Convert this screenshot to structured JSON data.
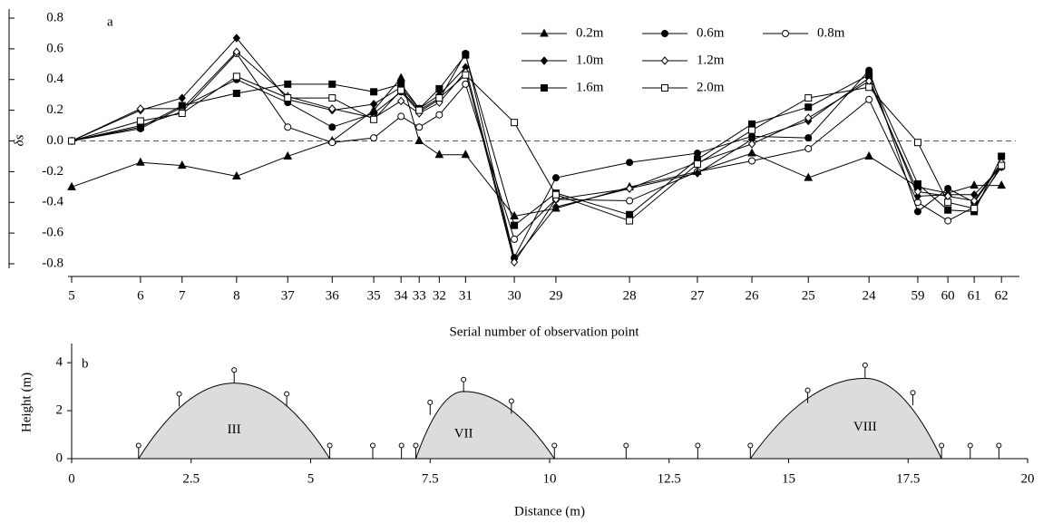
{
  "chart_data": [
    {
      "type": "line",
      "panel_label": "a",
      "xlabel": "Serial number of observation point",
      "ylabel": "δs",
      "x": [
        0,
        1.44,
        2.31,
        3.45,
        4.52,
        5.45,
        6.32,
        6.89,
        7.27,
        7.69,
        8.24,
        9.26,
        10.13,
        11.67,
        13.09,
        14.23,
        15.41,
        16.68,
        17.7,
        18.33,
        18.88,
        19.45
      ],
      "xlim": [
        0,
        19.75
      ],
      "xticks": [
        {
          "value": 0,
          "label": "5"
        },
        {
          "value": 1.44,
          "label": "6"
        },
        {
          "value": 2.31,
          "label": "7"
        },
        {
          "value": 3.45,
          "label": "8"
        },
        {
          "value": 4.52,
          "label": "37"
        },
        {
          "value": 5.45,
          "label": "36"
        },
        {
          "value": 6.32,
          "label": "35"
        },
        {
          "value": 6.89,
          "label": "34"
        },
        {
          "value": 7.27,
          "label": "33"
        },
        {
          "value": 7.69,
          "label": "32"
        },
        {
          "value": 8.24,
          "label": "31"
        },
        {
          "value": 9.26,
          "label": "30"
        },
        {
          "value": 10.13,
          "label": "29"
        },
        {
          "value": 11.67,
          "label": "28"
        },
        {
          "value": 13.09,
          "label": "27"
        },
        {
          "value": 14.23,
          "label": "26"
        },
        {
          "value": 15.41,
          "label": "25"
        },
        {
          "value": 16.68,
          "label": "24"
        },
        {
          "value": 17.7,
          "label": "59"
        },
        {
          "value": 18.33,
          "label": "60"
        },
        {
          "value": 18.88,
          "label": "61"
        },
        {
          "value": 19.45,
          "label": "62"
        }
      ],
      "ylim": [
        -0.8,
        0.8
      ],
      "yticks": [
        -0.8,
        -0.6,
        -0.4,
        -0.2,
        {
          "value": 0,
          "label": "0.0"
        },
        0.2,
        0.4,
        0.6,
        0.8
      ],
      "reference_line": 0,
      "series": [
        {
          "name": "0.2m",
          "color": "#000000",
          "marker": "triangle",
          "values": [
            -0.3,
            -0.14,
            -0.16,
            -0.23,
            -0.1,
            0.0,
            0.2,
            0.41,
            0.0,
            -0.09,
            -0.09,
            -0.49,
            -0.44,
            -0.3,
            -0.2,
            -0.08,
            -0.24,
            -0.1,
            -0.3,
            -0.34,
            -0.29,
            -0.29
          ]
        },
        {
          "name": "0.6m",
          "color": "#000000",
          "marker": "circle",
          "values": [
            0.0,
            0.08,
            0.22,
            0.4,
            0.25,
            0.09,
            0.18,
            0.32,
            0.19,
            0.27,
            0.57,
            -0.76,
            -0.24,
            -0.14,
            -0.08,
            0.03,
            0.02,
            0.46,
            -0.46,
            -0.31,
            -0.4,
            -0.15
          ]
        },
        {
          "name": "0.8m",
          "color": "#000000",
          "marker": "open-circle",
          "values": [
            0.0,
            0.1,
            0.19,
            0.57,
            0.09,
            -0.01,
            0.02,
            0.16,
            0.09,
            0.17,
            0.37,
            -0.64,
            -0.38,
            -0.39,
            -0.2,
            -0.13,
            -0.05,
            0.27,
            -0.4,
            -0.52,
            -0.43,
            -0.17
          ]
        },
        {
          "name": "1.0m",
          "color": "#000000",
          "marker": "diamond",
          "values": [
            0.0,
            0.2,
            0.28,
            0.67,
            0.27,
            0.2,
            0.24,
            0.35,
            0.21,
            0.3,
            0.48,
            -0.77,
            -0.43,
            -0.31,
            -0.21,
            0.01,
            0.13,
            0.41,
            -0.36,
            -0.35,
            -0.35,
            -0.17
          ]
        },
        {
          "name": "1.2m",
          "color": "#000000",
          "marker": "open-diamond",
          "values": [
            0.0,
            0.21,
            0.21,
            0.58,
            0.29,
            0.21,
            0.15,
            0.26,
            0.18,
            0.25,
            0.45,
            -0.79,
            -0.38,
            -0.31,
            -0.14,
            -0.02,
            0.15,
            0.39,
            -0.33,
            -0.36,
            -0.39,
            -0.14
          ]
        },
        {
          "name": "1.6m",
          "color": "#000000",
          "marker": "square",
          "values": [
            0.0,
            0.09,
            0.23,
            0.31,
            0.37,
            0.37,
            0.32,
            0.37,
            0.21,
            0.34,
            0.56,
            -0.55,
            -0.34,
            -0.48,
            -0.12,
            0.11,
            0.22,
            0.43,
            -0.28,
            -0.45,
            -0.46,
            -0.1
          ]
        },
        {
          "name": "2.0m",
          "color": "#000000",
          "marker": "open-square",
          "values": [
            0.0,
            0.13,
            0.18,
            0.42,
            0.28,
            0.28,
            0.14,
            0.33,
            0.2,
            0.28,
            0.43,
            0.12,
            -0.35,
            -0.52,
            -0.15,
            0.07,
            0.28,
            0.35,
            -0.01,
            -0.4,
            -0.44,
            -0.16
          ]
        }
      ]
    },
    {
      "type": "area",
      "panel_label": "b",
      "xlabel": "Distance (m)",
      "ylabel": "Height (m)",
      "xlim": [
        0,
        20
      ],
      "xticks": [
        0,
        2.5,
        5,
        7.5,
        10,
        12.5,
        15,
        17.5,
        20
      ],
      "ylim": [
        0,
        4.8
      ],
      "yticks": [
        0,
        2,
        4
      ],
      "series": [
        {
          "name": "III",
          "color": "#dcdcdc",
          "x": [
            1.4,
            3.4,
            5.4
          ],
          "values": [
            0,
            3.15,
            0
          ]
        },
        {
          "name": "VII",
          "color": "#dcdcdc",
          "x": [
            7.2,
            8.2,
            10.1
          ],
          "values": [
            0,
            2.8,
            0
          ]
        },
        {
          "name": "VIII",
          "color": "#dcdcdc",
          "x": [
            14.2,
            16.6,
            18.2
          ],
          "values": [
            0,
            3.35,
            0
          ]
        }
      ],
      "markers": {
        "x": [
          1.4,
          2.25,
          3.4,
          4.5,
          5.4,
          6.3,
          6.9,
          7.2,
          7.5,
          8.2,
          9.2,
          10.1,
          11.6,
          13.1,
          14.2,
          15.4,
          16.6,
          17.6,
          18.2,
          18.8,
          19.4
        ],
        "values": [
          0.55,
          2.7,
          3.7,
          2.7,
          0.55,
          0.55,
          0.55,
          0.55,
          2.35,
          3.3,
          2.4,
          0.55,
          0.55,
          0.55,
          0.55,
          2.85,
          3.9,
          2.75,
          0.55,
          0.55,
          0.55
        ]
      }
    }
  ]
}
